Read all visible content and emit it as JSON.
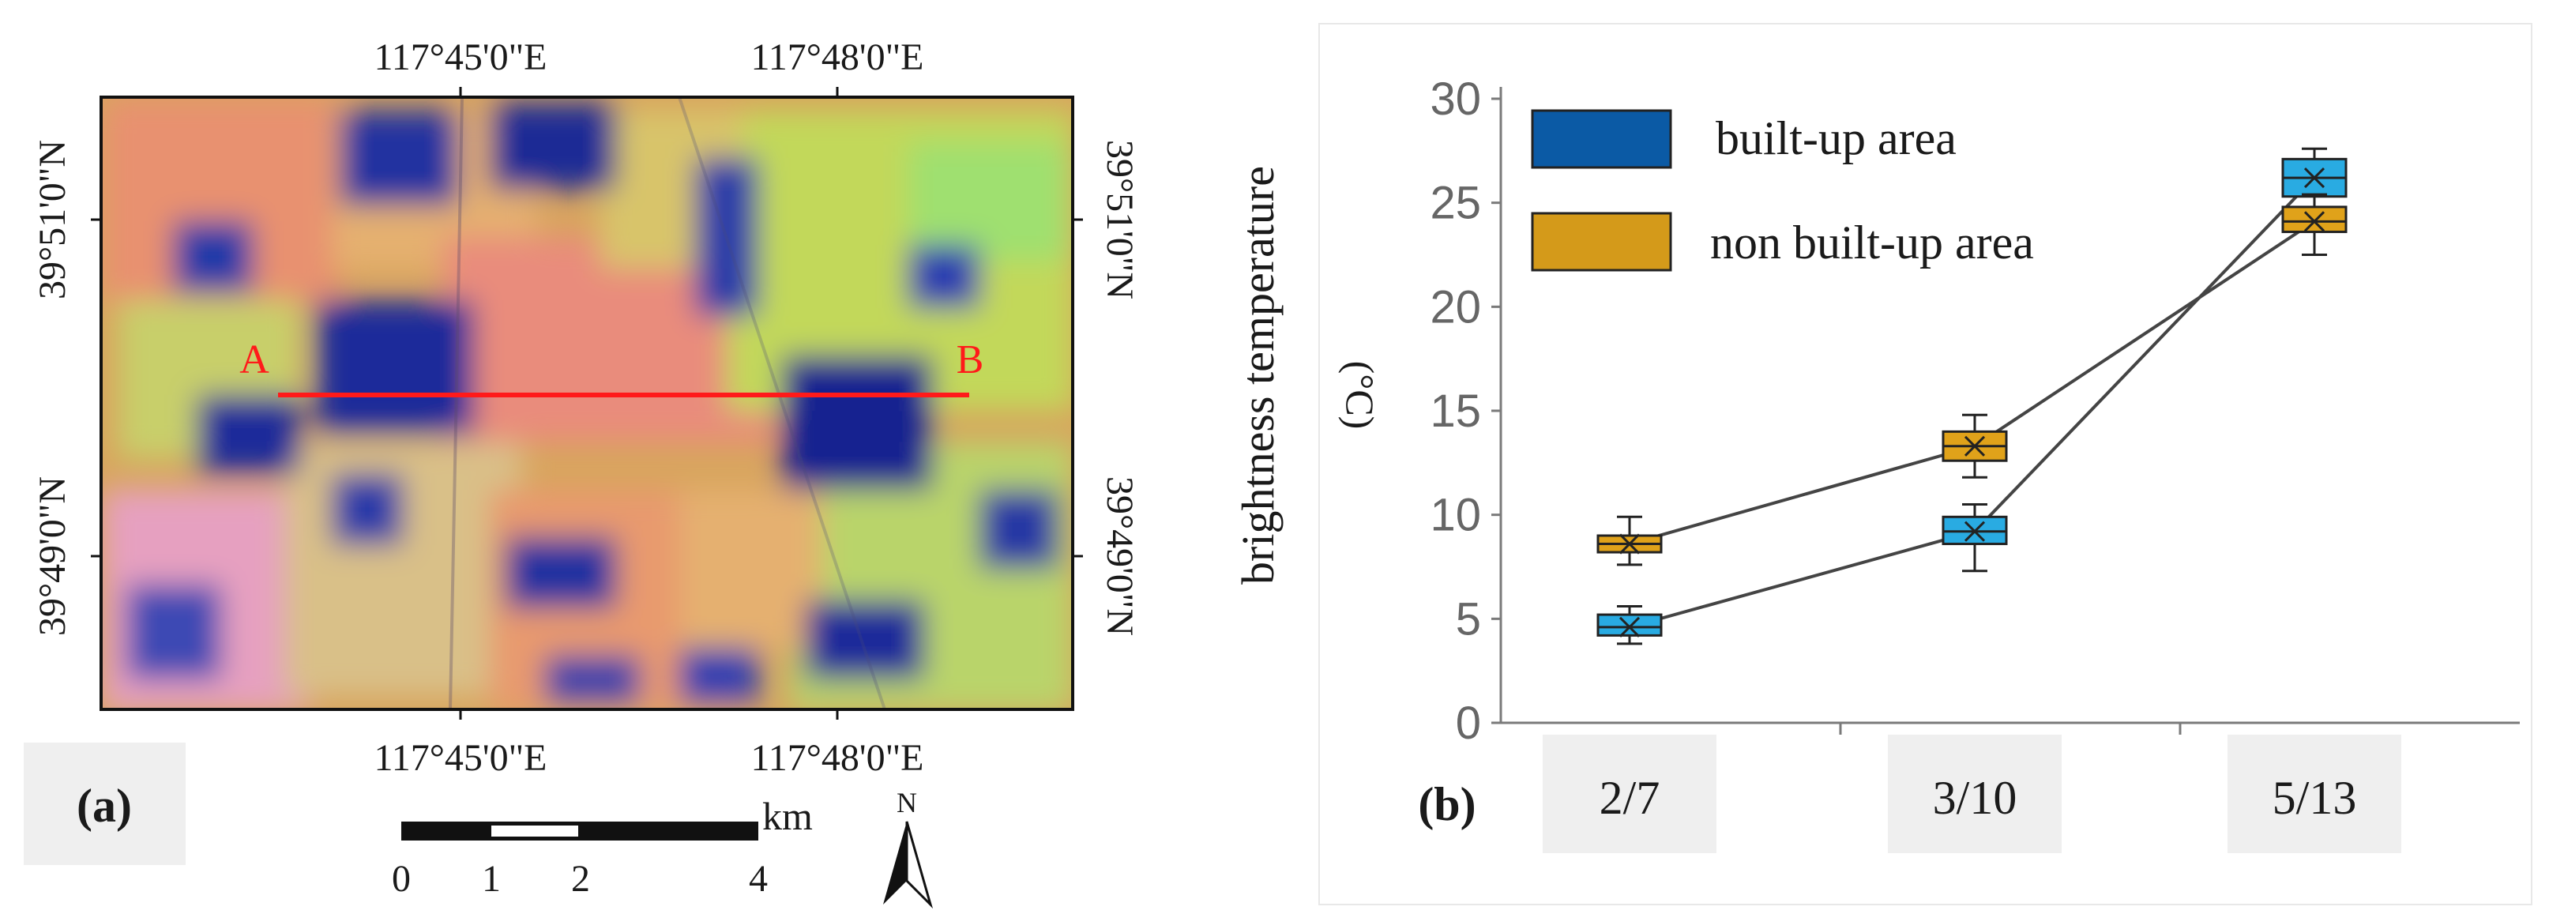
{
  "panel_a": {
    "label": "(a)",
    "top_lon_labels": [
      "117°45'0\"E",
      "117°48'0\"E"
    ],
    "bottom_lon_labels": [
      "117°45'0\"E",
      "117°48'0\"E"
    ],
    "left_lat_labels": [
      "39°51'0\"N",
      "39°49'0\"N"
    ],
    "right_lat_labels": [
      "39°51'0\"N",
      "39°49'0\"N"
    ],
    "transect": {
      "start": "A",
      "end": "B",
      "color": "#ff1a1a"
    },
    "scale_bar": {
      "unit": "km",
      "ticks": [
        "0",
        "1",
        "2",
        "4"
      ]
    },
    "north_label": "N",
    "colors": {
      "blue": "#1c2a9a",
      "orange": "#e7a25a",
      "green": "#b6d85a",
      "pink": "#e98a8a",
      "navy": "#0f1a70"
    }
  },
  "panel_b": {
    "label": "(b)"
  },
  "chart_data": {
    "type": "line",
    "title": "",
    "xlabel": "",
    "ylabel": "brightness temperature",
    "ylabel_unit": "(°C)",
    "categories": [
      "2/7",
      "3/10",
      "5/13"
    ],
    "ylim": [
      0,
      30
    ],
    "yticks": [
      "0",
      "5",
      "10",
      "15",
      "20",
      "25",
      "30"
    ],
    "legend_position": "top-left",
    "series": [
      {
        "name": "built-up area",
        "color": "#29abe2",
        "legend_color": "#0b5aa5",
        "values": [
          4.6,
          9.2,
          26.2
        ],
        "box_q1": [
          4.2,
          8.6,
          25.3
        ],
        "box_q3": [
          5.2,
          9.9,
          27.1
        ],
        "whisker_low": [
          3.8,
          7.3,
          24.4
        ],
        "whisker_high": [
          5.6,
          10.5,
          27.6
        ]
      },
      {
        "name": "non built-up area",
        "color": "#e0a21a",
        "legend_color": "#d49a1a",
        "values": [
          8.6,
          13.3,
          24.1
        ],
        "box_q1": [
          8.2,
          12.6,
          23.6
        ],
        "box_q3": [
          9.0,
          14.0,
          24.8
        ],
        "whisker_low": [
          7.6,
          11.8,
          22.5
        ],
        "whisker_high": [
          9.9,
          14.8,
          25.4
        ]
      }
    ]
  }
}
